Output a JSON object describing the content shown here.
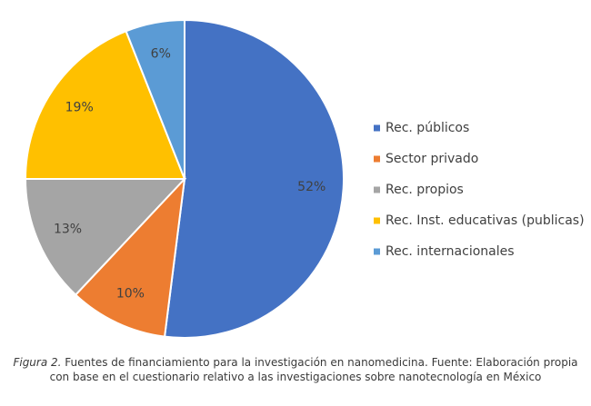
{
  "chart_data": {
    "type": "pie",
    "categories": [
      "Rec. públicos",
      "Sector privado",
      "Rec. propios",
      "Rec. Inst. educativas (publicas)",
      "Rec. internacionales"
    ],
    "values": [
      52,
      10,
      13,
      19,
      6
    ],
    "value_labels": [
      "52%",
      "10%",
      "13%",
      "19%",
      "6%"
    ],
    "colors": [
      "#4472c4",
      "#ed7d31",
      "#a5a5a5",
      "#ffc000",
      "#5b9bd5"
    ],
    "legend": "right"
  },
  "caption_label": "Figura 2.",
  "caption": "Fuentes de financiamiento para la investigación en nanomedicina. Fuente: Elaboración propia con base en el cuestionario relativo a las investigaciones sobre nanotecnología en México"
}
